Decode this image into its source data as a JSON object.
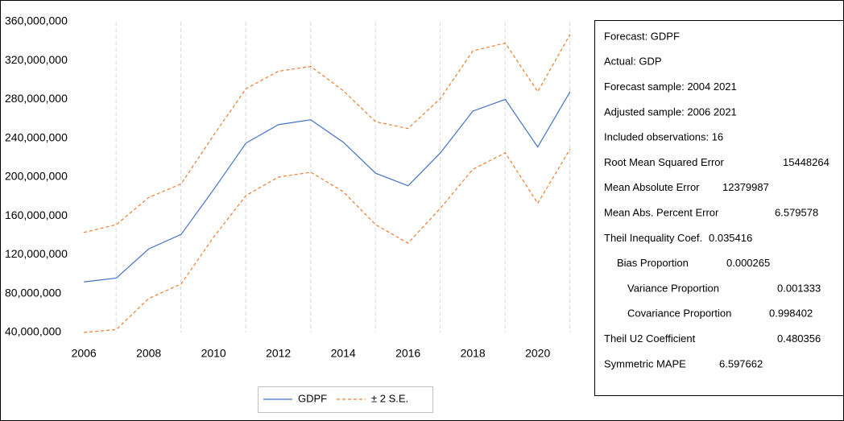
{
  "chart_data": {
    "type": "line",
    "x": [
      2006,
      2007,
      2008,
      2009,
      2010,
      2011,
      2012,
      2013,
      2014,
      2015,
      2016,
      2017,
      2018,
      2019,
      2020,
      2021
    ],
    "series": [
      {
        "name": "GDPF",
        "color": "#4472c4",
        "values": [
          92000000,
          96000000,
          126000000,
          141000000,
          187000000,
          235000000,
          254000000,
          259000000,
          236000000,
          204000000,
          191000000,
          225000000,
          268000000,
          280000000,
          231000000,
          288000000
        ]
      },
      {
        "name": "± 2 S.E.",
        "color": "#ed7d31",
        "dashed": true,
        "upper": [
          143000000,
          151000000,
          179000000,
          193000000,
          243000000,
          291000000,
          309000000,
          314000000,
          289000000,
          257000000,
          250000000,
          281000000,
          330000000,
          338000000,
          288000000,
          347000000
        ],
        "lower": [
          40000000,
          43000000,
          75000000,
          90000000,
          138000000,
          181000000,
          200000000,
          205000000,
          185000000,
          151000000,
          132000000,
          168000000,
          208000000,
          225000000,
          173000000,
          229000000
        ]
      }
    ],
    "xlim": [
      2005.4,
      2021.3
    ],
    "xticks": [
      2006,
      2008,
      2010,
      2012,
      2014,
      2016,
      2018,
      2020
    ],
    "ylim": [
      40000000,
      360000000
    ],
    "yticks": [
      {
        "value": 40000000,
        "label": "40,000,000"
      },
      {
        "value": 80000000,
        "label": "80,000,000"
      },
      {
        "value": 120000000,
        "label": "120,000,000"
      },
      {
        "value": 160000000,
        "label": "160,000,000"
      },
      {
        "value": 200000000,
        "label": "200,000,000"
      },
      {
        "value": 240000000,
        "label": "240,000,000"
      },
      {
        "value": 280000000,
        "label": "280,000,000"
      },
      {
        "value": 320000000,
        "label": "320,000,000"
      },
      {
        "value": 360000000,
        "label": "360,000,000"
      }
    ],
    "grid": true,
    "legend": "bottom"
  },
  "stats": {
    "lines": [
      "Forecast: GDPF",
      "Actual: GDP",
      "Forecast sample: 2004 2021",
      "Adjusted sample: 2006 2021",
      "Included observations: 16"
    ],
    "rows": [
      [
        "Root Mean Squared Error",
        "15448264"
      ],
      [
        "Mean Absolute Error",
        "12379987"
      ],
      [
        "Mean Abs. Percent Error",
        "6.579578"
      ],
      [
        "Theil Inequality Coef.",
        "0.035416"
      ],
      [
        "Bias Proportion",
        "0.000265"
      ],
      [
        "Variance Proportion",
        "0.001333"
      ],
      [
        "Covariance Proportion",
        "0.998402"
      ],
      [
        "Theil U2 Coefficient",
        "0.480356"
      ],
      [
        "Symmetric MAPE",
        "6.597662"
      ]
    ]
  }
}
